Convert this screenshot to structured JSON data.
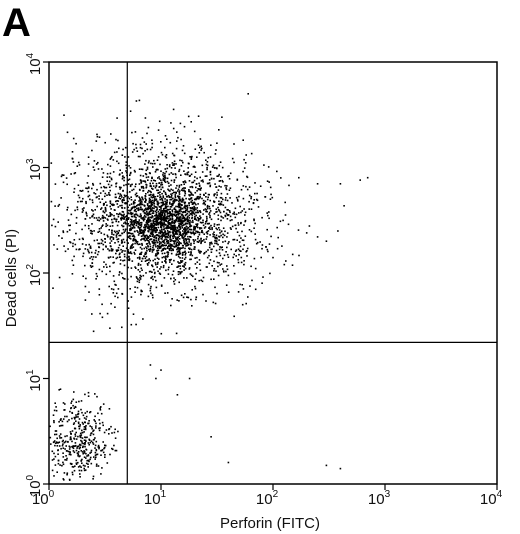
{
  "panel_label": "A",
  "chart_data": {
    "type": "scatter",
    "title": "",
    "xlabel": "Perforin (FITC)",
    "ylabel": "Dead cells (PI)",
    "xscale": "log",
    "yscale": "log",
    "xlim": [
      1,
      10000
    ],
    "ylim": [
      1,
      10000
    ],
    "x_ticks": [
      {
        "value": 1,
        "base": "10",
        "exp": "0"
      },
      {
        "value": 10,
        "base": "10",
        "exp": "1"
      },
      {
        "value": 100,
        "base": "10",
        "exp": "2"
      },
      {
        "value": 1000,
        "base": "10",
        "exp": "3"
      },
      {
        "value": 10000,
        "base": "10",
        "exp": "4"
      }
    ],
    "y_ticks": [
      {
        "value": 1,
        "base": "10",
        "exp": "0"
      },
      {
        "value": 10,
        "base": "10",
        "exp": "1"
      },
      {
        "value": 100,
        "base": "10",
        "exp": "2"
      },
      {
        "value": 1000,
        "base": "10",
        "exp": "3"
      },
      {
        "value": 10000,
        "base": "10",
        "exp": "4"
      }
    ],
    "gates": {
      "x": 5,
      "y": 22
    },
    "grid": false,
    "legend": "none",
    "point_color": "#000000",
    "clusters": [
      {
        "name": "",
        "center": [
          10,
          320
        ],
        "spread_log": [
          0.42,
          0.34
        ],
        "count": 2300
      },
      {
        "name": "",
        "center": [
          11,
          300
        ],
        "spread_log": [
          0.16,
          0.14
        ],
        "count": 800
      },
      {
        "name": "",
        "center": [
          1.8,
          2.6
        ],
        "spread_log": [
          0.15,
          0.2
        ],
        "count": 420
      }
    ],
    "points": [
      [
        40,
        95
      ],
      [
        65,
        85
      ],
      [
        70,
        110
      ],
      [
        90,
        160
      ],
      [
        120,
        180
      ],
      [
        150,
        150
      ],
      [
        200,
        240
      ],
      [
        250,
        220
      ],
      [
        300,
        200
      ],
      [
        380,
        250
      ],
      [
        400,
        700
      ],
      [
        600,
        760
      ],
      [
        700,
        800
      ],
      [
        100,
        140
      ],
      [
        110,
        170
      ],
      [
        130,
        130
      ],
      [
        70,
        70
      ],
      [
        80,
        80
      ],
      [
        60,
        5000
      ],
      [
        35,
        3000
      ],
      [
        20,
        2200
      ],
      [
        18,
        10
      ],
      [
        14,
        7
      ],
      [
        28,
        2.8
      ],
      [
        40,
        1.6
      ],
      [
        300,
        1.5
      ],
      [
        400,
        1.4
      ],
      [
        3,
        38
      ],
      [
        3.5,
        30
      ],
      [
        2.5,
        28
      ],
      [
        9,
        10
      ],
      [
        10,
        12
      ],
      [
        170,
        800
      ],
      [
        250,
        700
      ],
      [
        45,
        150
      ],
      [
        55,
        120
      ]
    ],
    "seed": 7
  }
}
